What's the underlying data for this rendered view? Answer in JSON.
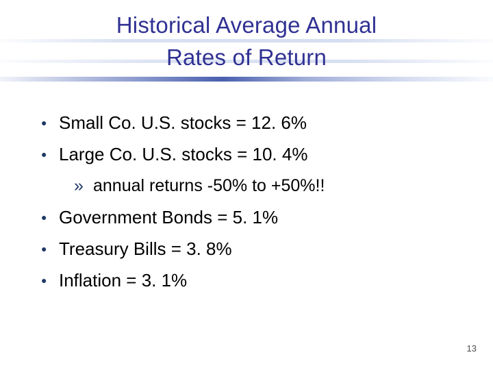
{
  "slide": {
    "title_line1": "Historical Average Annual",
    "title_line2": "Rates of Return",
    "bullet_glyph": "●",
    "sub_bullet_glyph": "»",
    "bullets": [
      {
        "level": 1,
        "text": "Small Co. U.S. stocks = 12. 6%"
      },
      {
        "level": 1,
        "text": "Large Co. U.S. stocks = 10. 4%"
      },
      {
        "level": 2,
        "text": "annual returns -50% to +50%!!"
      },
      {
        "level": 1,
        "text": "Government Bonds = 5. 1%"
      },
      {
        "level": 1,
        "text": "Treasury Bills = 3. 8%"
      },
      {
        "level": 1,
        "text": "Inflation = 3. 1%"
      }
    ],
    "page_number": "13",
    "colors": {
      "title": "#303193",
      "bullet": "#1f3864",
      "body_text": "#000000",
      "stripe_blue": "#b9c7e6"
    }
  }
}
